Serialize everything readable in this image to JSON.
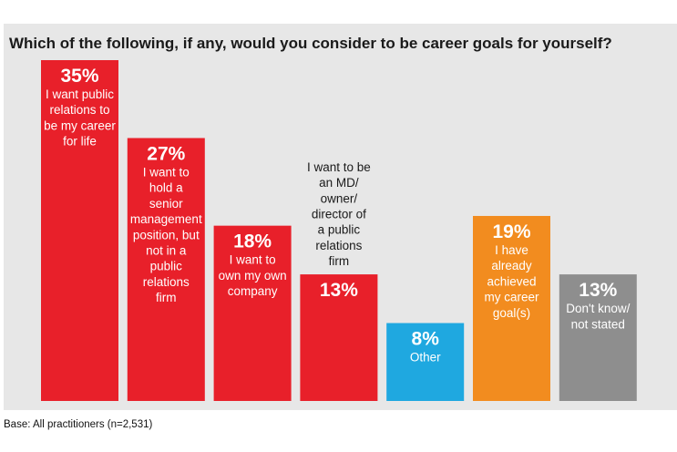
{
  "chart_data": {
    "type": "bar",
    "title": "Which of the following, if any, would you consider to be career goals for yourself?",
    "footnote": "Base: All practitioners (n=2,531)",
    "ylim": [
      0,
      35
    ],
    "value_format": "percent",
    "categories": [
      "I want public relations to be my career for life",
      "I want to hold a senior management position, but not in a public relations firm",
      "I want to own my own company",
      "I want to be an MD/ owner/ director of a public relations firm",
      "Other",
      "I have already achieved my career goal(s)",
      "Don't know/ not stated"
    ],
    "category_lines": [
      [
        "I want public",
        "relations to",
        "be my career",
        "for life"
      ],
      [
        "I want to",
        "hold a",
        "senior",
        "management",
        "position, but",
        "not in a",
        "public",
        "relations",
        "firm"
      ],
      [
        "I want to",
        "own my own",
        "company"
      ],
      [
        "I want to be",
        "an MD/",
        "owner/",
        "director of",
        "a public",
        "relations",
        "firm"
      ],
      [
        "Other"
      ],
      [
        "I have",
        "already",
        "achieved",
        "my career",
        "goal(s)"
      ],
      [
        "Don't know/",
        "not stated"
      ]
    ],
    "value_labels": [
      "35%",
      "27%",
      "18%",
      "13%",
      "8%",
      "19%",
      "13%"
    ],
    "values": [
      35,
      27,
      18,
      13,
      8,
      19,
      13
    ],
    "colors": [
      "#e8202a",
      "#e8202a",
      "#e8202a",
      "#e8202a",
      "#1fa8e0",
      "#f28c1f",
      "#8e8e8e"
    ],
    "grid": false,
    "legend": "none"
  }
}
